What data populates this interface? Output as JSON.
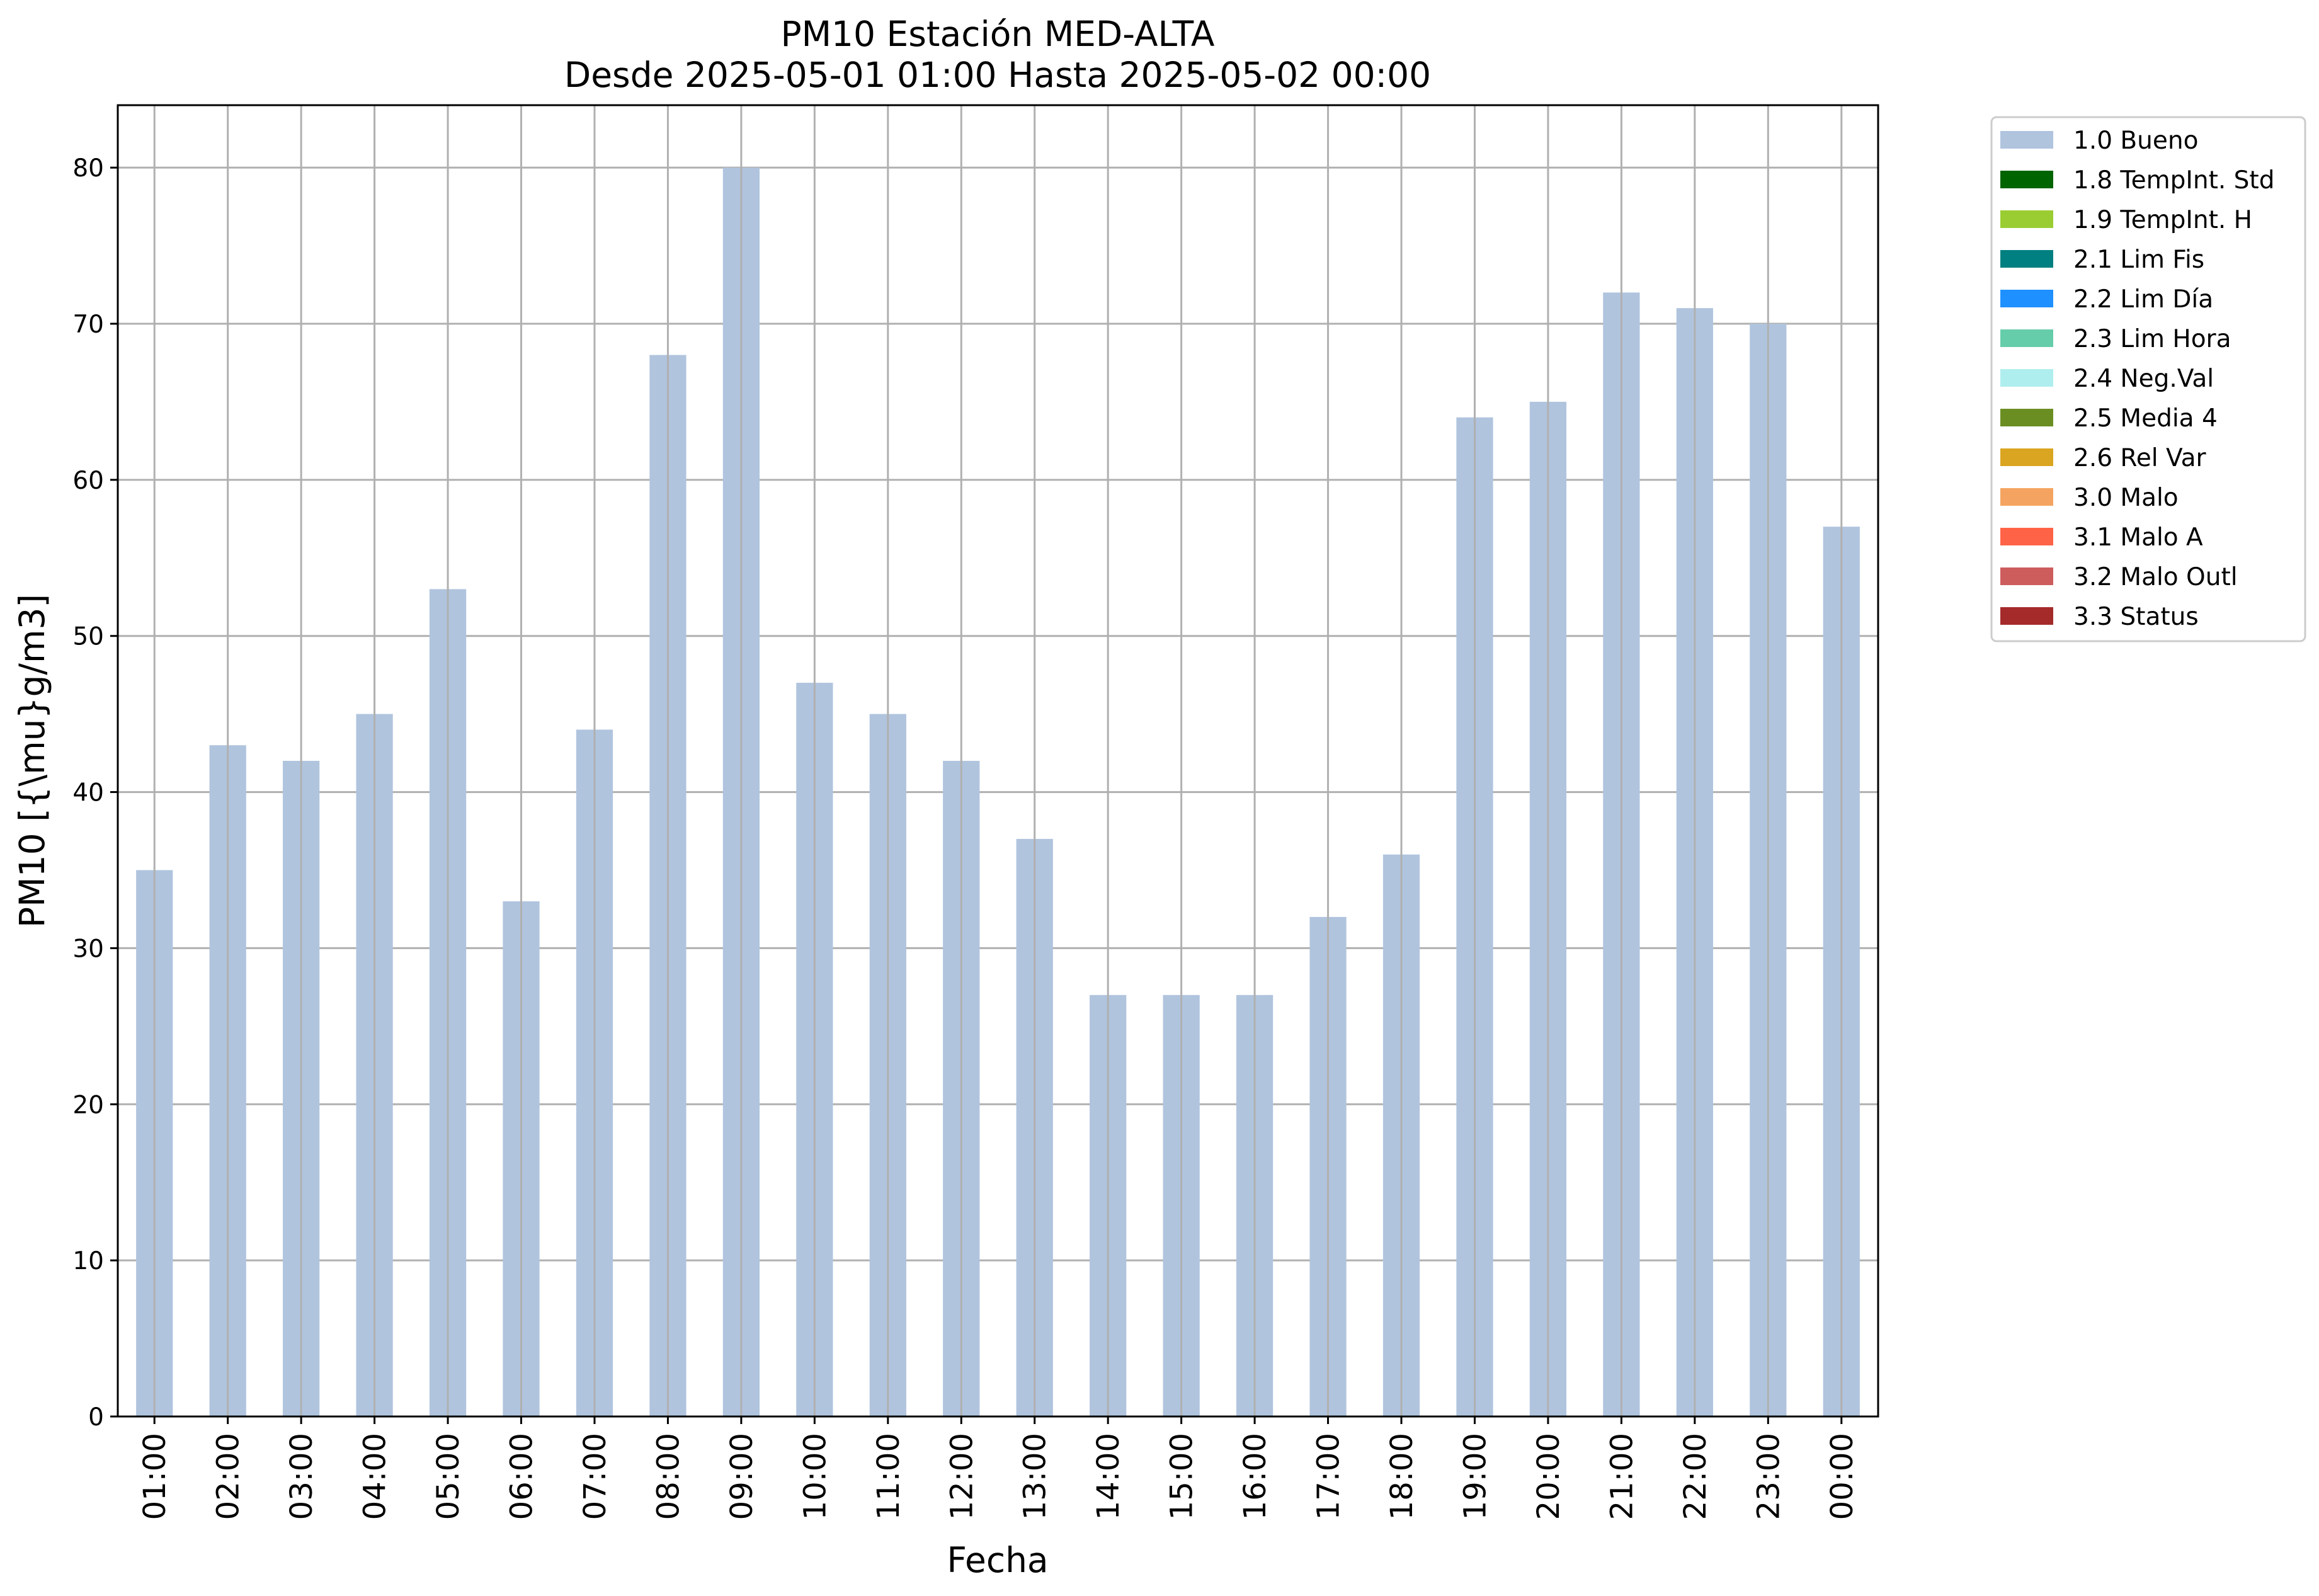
{
  "chart_data": {
    "type": "bar",
    "title": "PM10 Estación MED-ALTA",
    "subtitle": "Desde 2025-05-01 01:00 Hasta 2025-05-02 00:00",
    "xlabel": "Fecha",
    "ylabel": "PM10 [{\\mu}g/m3]",
    "ylim": [
      0,
      84
    ],
    "yticks": [
      0,
      10,
      20,
      30,
      40,
      50,
      60,
      70,
      80
    ],
    "grid": true,
    "legend_position": "outside-top-right",
    "categories": [
      "01:00",
      "02:00",
      "03:00",
      "04:00",
      "05:00",
      "06:00",
      "07:00",
      "08:00",
      "09:00",
      "10:00",
      "11:00",
      "12:00",
      "13:00",
      "14:00",
      "15:00",
      "16:00",
      "17:00",
      "18:00",
      "19:00",
      "20:00",
      "21:00",
      "22:00",
      "23:00",
      "00:00"
    ],
    "series": [
      {
        "name": "1.0 Bueno",
        "color": "#b0c4de",
        "values": [
          35,
          43,
          42,
          45,
          53,
          33,
          44,
          68,
          80,
          47,
          45,
          42,
          37,
          27,
          27,
          27,
          32,
          36,
          64,
          65,
          72,
          71,
          70,
          57
        ]
      }
    ],
    "legend": [
      {
        "label": "1.0 Bueno",
        "color": "#b0c4de"
      },
      {
        "label": "1.8 TempInt. Std",
        "color": "#006400"
      },
      {
        "label": "1.9 TempInt. H",
        "color": "#9acd32"
      },
      {
        "label": "2.1 Lim Fis",
        "color": "#008080"
      },
      {
        "label": "2.2 Lim Día",
        "color": "#1e90ff"
      },
      {
        "label": "2.3 Lim Hora",
        "color": "#66cdaa"
      },
      {
        "label": "2.4 Neg.Val",
        "color": "#afeeee"
      },
      {
        "label": "2.5 Media 4",
        "color": "#6b8e23"
      },
      {
        "label": "2.6 Rel Var",
        "color": "#daa520"
      },
      {
        "label": "3.0 Malo",
        "color": "#f4a460"
      },
      {
        "label": "3.1 Malo A",
        "color": "#ff6347"
      },
      {
        "label": "3.2 Malo Outl",
        "color": "#cd5c5c"
      },
      {
        "label": "3.3 Status",
        "color": "#a52a2a"
      }
    ]
  }
}
